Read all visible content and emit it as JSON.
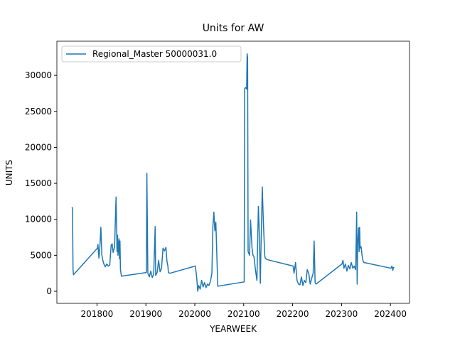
{
  "chart_data": {
    "type": "line",
    "title": "Units for AW",
    "x_label": "YEARWEEK",
    "y_label": "UNITS",
    "legend": "upper left",
    "x": [
      201749,
      201750,
      201751,
      201752,
      201801,
      201802,
      201803,
      201804,
      201806,
      201808,
      201810,
      201812,
      201814,
      201817,
      201820,
      201823,
      201826,
      201829,
      201831,
      201833,
      201836,
      201839,
      201841,
      201842,
      201843,
      201845,
      201846,
      201847,
      201848,
      201850,
      201901,
      201902,
      201904,
      201907,
      201910,
      201913,
      201916,
      201919,
      201920,
      201923,
      201926,
      201929,
      201932,
      201935,
      201938,
      201941,
      201943,
      201945,
      201946,
      201949,
      202001,
      202002,
      202004,
      202006,
      202008,
      202011,
      202014,
      202017,
      202020,
      202023,
      202026,
      202029,
      202032,
      202035,
      202037,
      202039,
      202041,
      202043,
      202044,
      202047,
      202101,
      202102,
      202104,
      202106,
      202107,
      202108,
      202109,
      202112,
      202114,
      202117,
      202119,
      202121,
      202124,
      202127,
      202130,
      202132,
      202134,
      202135,
      202136,
      202138,
      202140,
      202143,
      202144,
      202146,
      202148,
      202201,
      202203,
      202206,
      202209,
      202212,
      202215,
      202218,
      202221,
      202224,
      202227,
      202230,
      202233,
      202236,
      202239,
      202242,
      202244,
      202246,
      202248,
      202301,
      202303,
      202305,
      202308,
      202311,
      202314,
      202317,
      202320,
      202323,
      202326,
      202329,
      202331,
      202332,
      202333,
      202335,
      202336,
      202337,
      202338,
      202340,
      202342,
      202344,
      202346,
      202401,
      202403,
      202405,
      202406,
      202408
    ],
    "series": [
      {
        "name": "Regional_Master 50000031.0",
        "color": "#1f77b4",
        "values": [
          11700,
          11500,
          3000,
          2300,
          6000,
          6500,
          5500,
          4600,
          6300,
          8900,
          5000,
          4300,
          3800,
          3400,
          3800,
          3500,
          3600,
          6400,
          6600,
          5400,
          6200,
          13100,
          5500,
          7800,
          5000,
          7300,
          4500,
          7000,
          3000,
          2100,
          2600,
          16400,
          2500,
          2000,
          2800,
          1900,
          2400,
          9000,
          2200,
          2600,
          4300,
          2700,
          3200,
          6000,
          5600,
          6100,
          4200,
          3500,
          2600,
          2500,
          3500,
          3000,
          1800,
          0,
          800,
          300,
          1500,
          600,
          1200,
          500,
          1000,
          800,
          1400,
          2500,
          9000,
          11000,
          8400,
          9600,
          7400,
          700,
          1300,
          28200,
          28300,
          28100,
          33000,
          32500,
          5500,
          5000,
          9900,
          6000,
          5000,
          4800,
          3000,
          1500,
          11800,
          8000,
          1100,
          5000,
          8000,
          14500,
          10000,
          5000,
          4600,
          4500,
          4400,
          3500,
          2500,
          4000,
          1500,
          1000,
          900,
          2000,
          800,
          1500,
          1200,
          3000,
          2500,
          1000,
          1800,
          2500,
          7000,
          1200,
          1000,
          3800,
          4300,
          3200,
          3800,
          2800,
          3600,
          3100,
          4000,
          3200,
          3500,
          3000,
          11000,
          1000,
          6500,
          8800,
          5500,
          8900,
          6000,
          6200,
          5000,
          4200,
          4000,
          3200,
          3500,
          2900,
          3300,
          3300
        ]
      }
    ],
    "xlim": [
      201718,
      202439
    ],
    "ylim": [
      -1680,
      34750
    ],
    "xticks": [
      201800,
      201900,
      202000,
      202100,
      202200,
      202300,
      202400
    ],
    "yticks": [
      0,
      5000,
      10000,
      15000,
      20000,
      25000,
      30000
    ]
  }
}
